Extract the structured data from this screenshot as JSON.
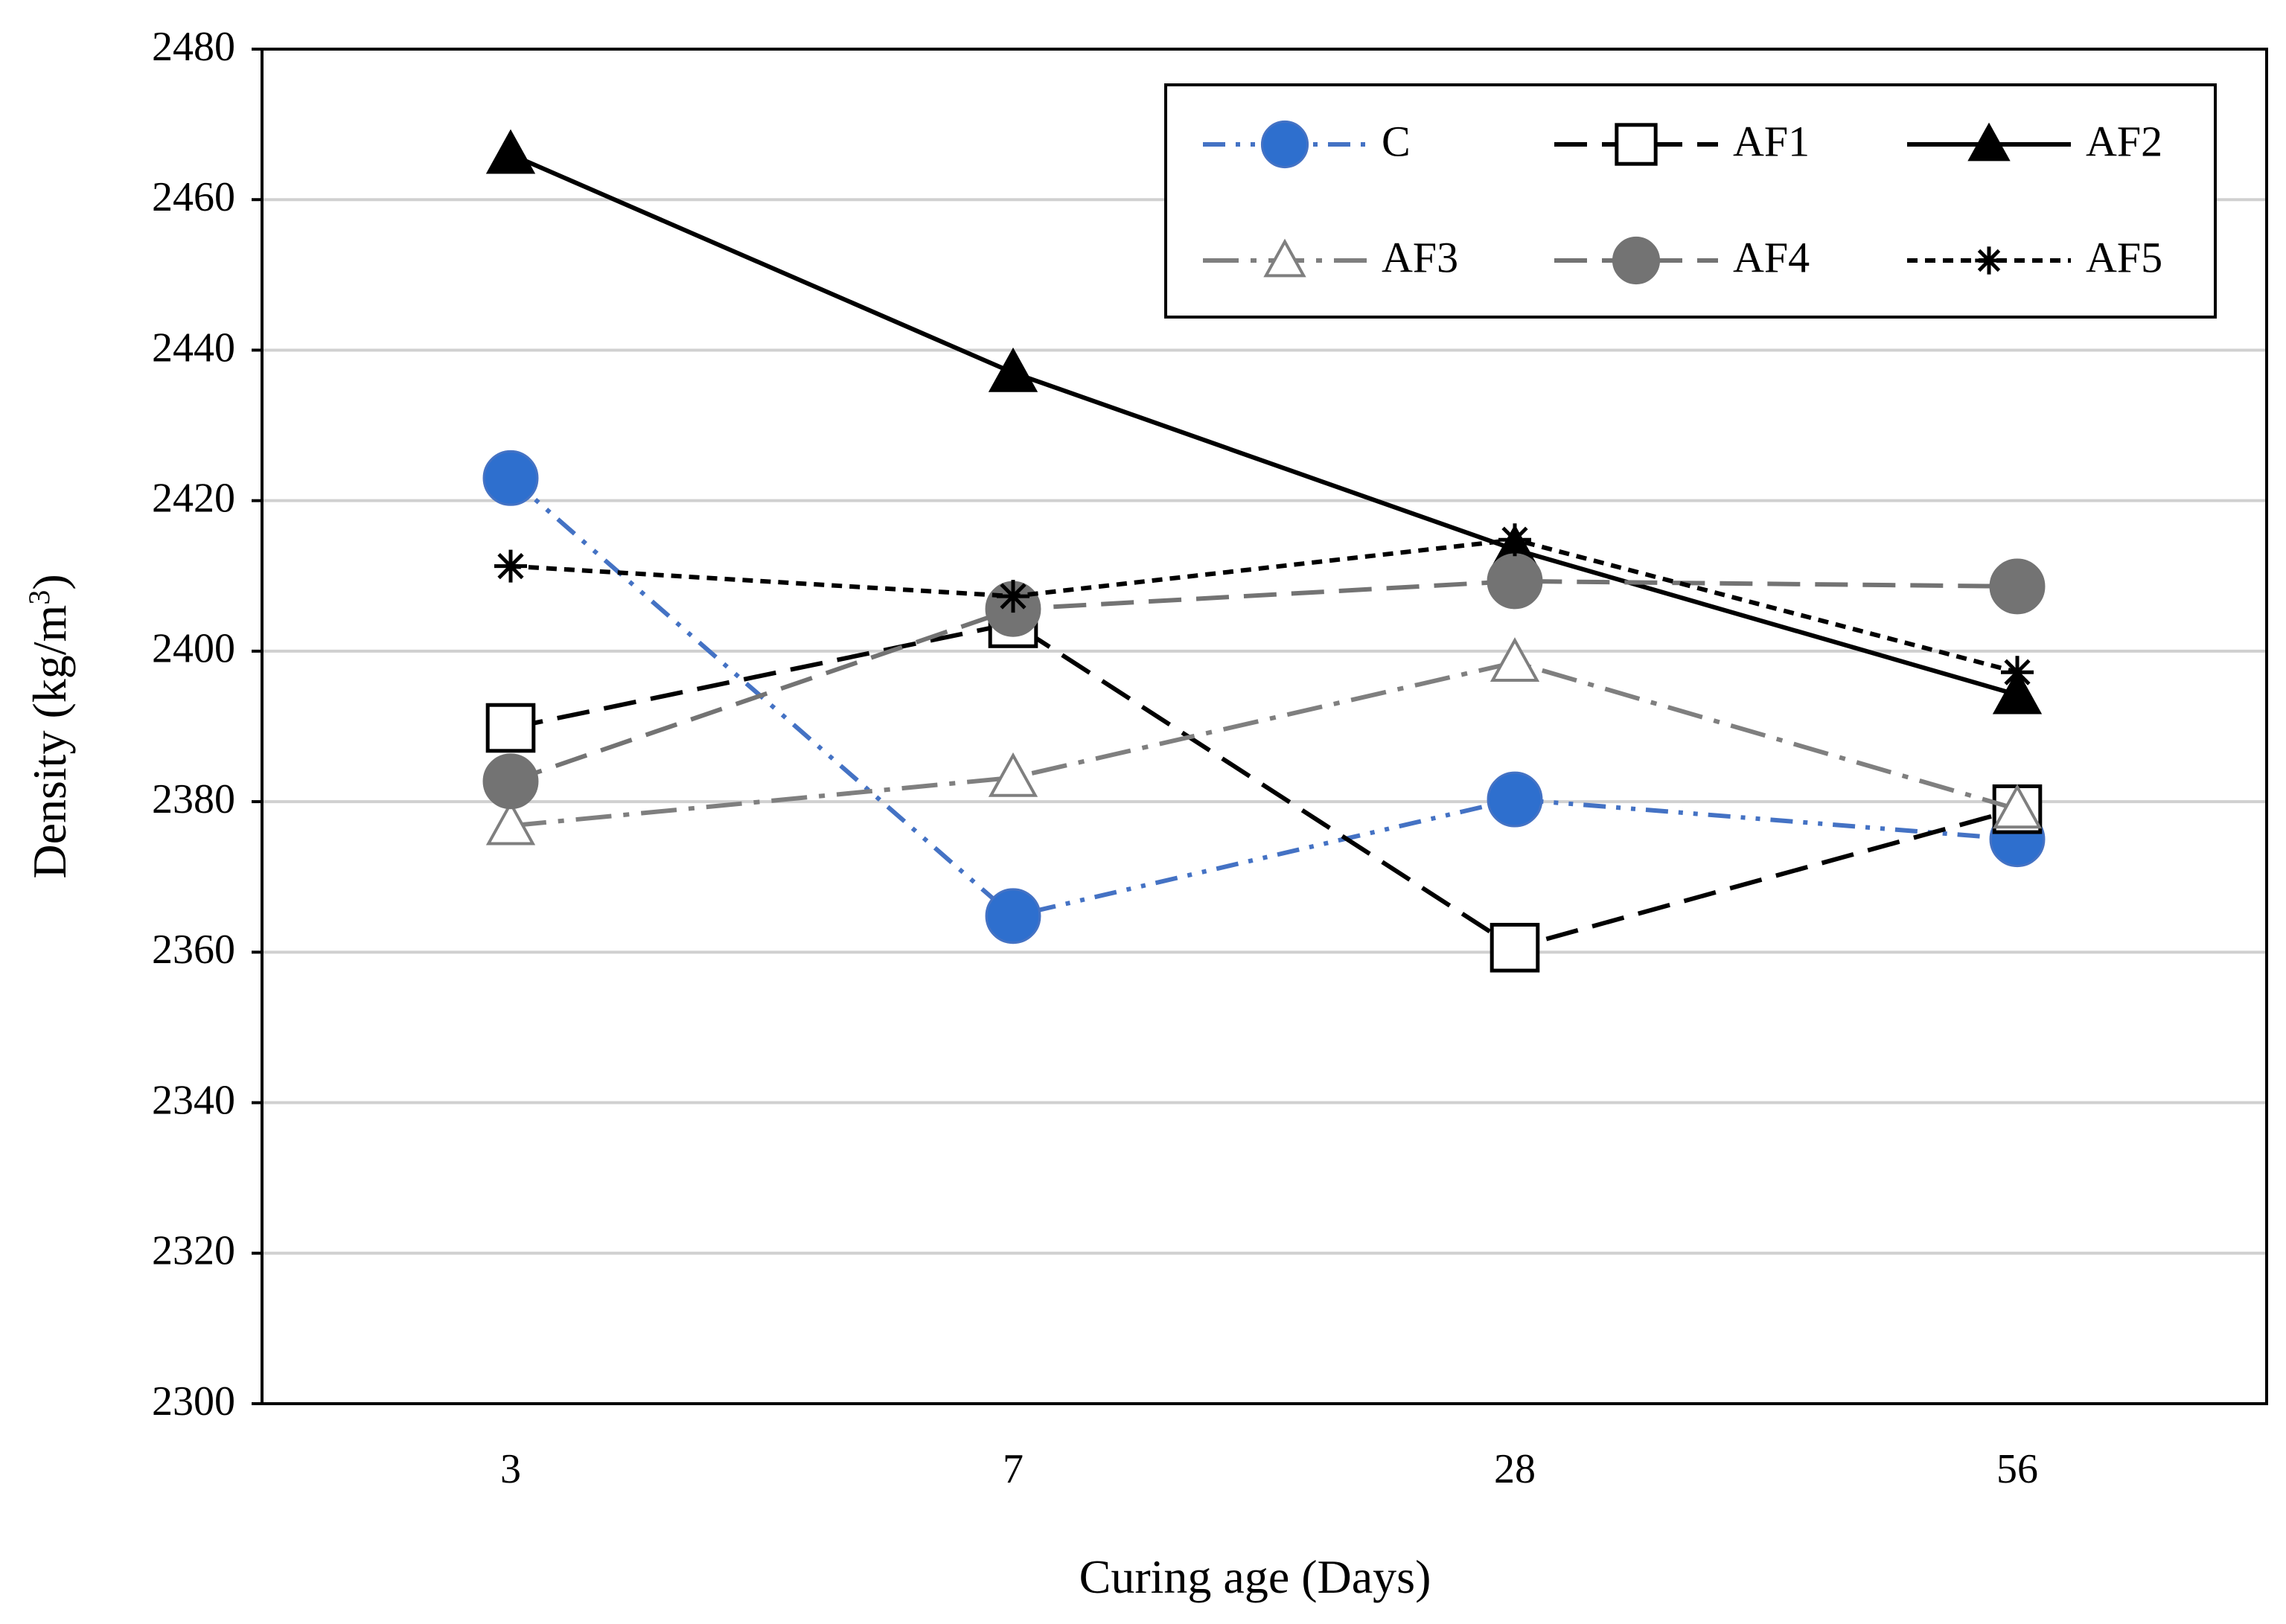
{
  "chart_data": {
    "type": "line",
    "title": "",
    "xlabel": "Curing age (Days)",
    "ylabel_main": "Density (kg/m",
    "ylabel_sup": "3",
    "ylabel_close": ")",
    "categories": [
      "3",
      "7",
      "28",
      "56"
    ],
    "ylim": [
      2300,
      2480
    ],
    "yticks": [
      2300,
      2320,
      2340,
      2360,
      2380,
      2400,
      2420,
      2440,
      2460,
      2480
    ],
    "grid": true,
    "legend_position": "top-right",
    "series": [
      {
        "name": "C",
        "values": [
          2423,
          2364.8,
          2380.3,
          2375
        ],
        "color": "#4472c4",
        "marker": "circle",
        "fill": "#2e6fce",
        "dash": "dash-dot-dot"
      },
      {
        "name": "AF1",
        "values": [
          2389.8,
          2403.7,
          2360.6,
          2379
        ],
        "color": "#000000",
        "marker": "square",
        "fill": "#ffffff",
        "dash": "long-dash"
      },
      {
        "name": "AF2",
        "values": [
          2466,
          2437,
          2413.5,
          2394.2
        ],
        "color": "#000000",
        "marker": "triangle",
        "fill": "#000000",
        "dash": "solid"
      },
      {
        "name": "AF3",
        "values": [
          2376.8,
          2383.2,
          2398.5,
          2379
        ],
        "color": "#7f7f7f",
        "marker": "triangle",
        "fill": "#ffffff",
        "dash": "long-dash-dot"
      },
      {
        "name": "AF4",
        "values": [
          2382.7,
          2405.6,
          2409.3,
          2408.6
        ],
        "color": "#737373",
        "marker": "circle",
        "fill": "#737373",
        "dash": "long-dash"
      },
      {
        "name": "AF5",
        "values": [
          2411.3,
          2407.3,
          2414.8,
          2397.2
        ],
        "color": "#000000",
        "marker": "star",
        "fill": "#000000",
        "dash": "short-dash"
      }
    ]
  }
}
